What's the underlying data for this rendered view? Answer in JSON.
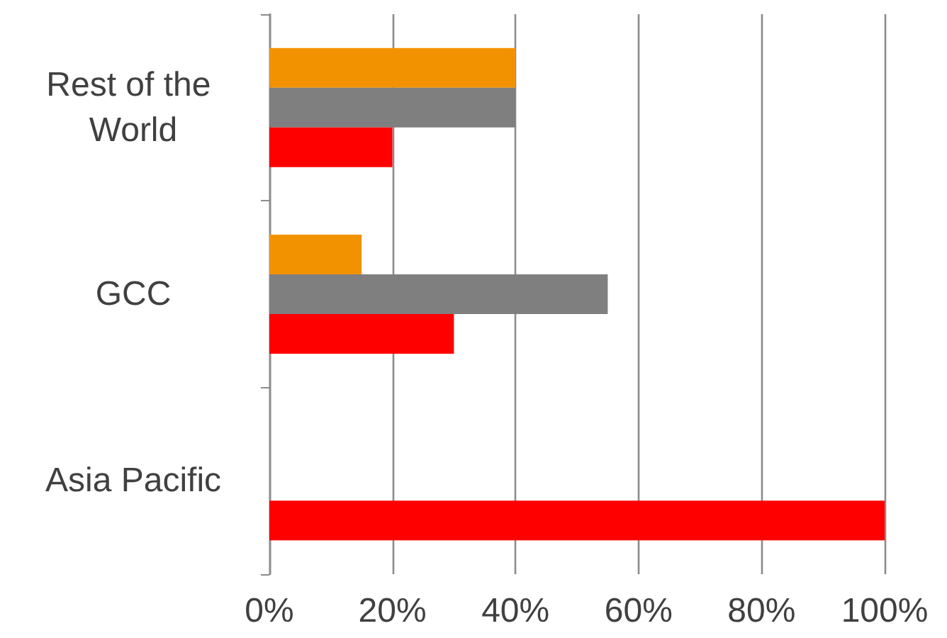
{
  "chart_data": {
    "type": "bar",
    "orientation": "horizontal",
    "categories": [
      "Rest of the World",
      "GCC",
      "Asia Pacific"
    ],
    "series": [
      {
        "color": "#f39200",
        "values": [
          40,
          15,
          null
        ]
      },
      {
        "color": "#7f7f7f",
        "values": [
          40,
          55,
          null
        ]
      },
      {
        "color": "#ff0000",
        "values": [
          20,
          30,
          100
        ]
      }
    ],
    "xlim": [
      0,
      100
    ],
    "xticks": [
      {
        "value": 0,
        "label": "0%"
      },
      {
        "value": 20,
        "label": "20%"
      },
      {
        "value": 40,
        "label": "40%"
      },
      {
        "value": 60,
        "label": "60%"
      },
      {
        "value": 80,
        "label": "80%"
      },
      {
        "value": 100,
        "label": "100%"
      }
    ],
    "grid": "x"
  }
}
